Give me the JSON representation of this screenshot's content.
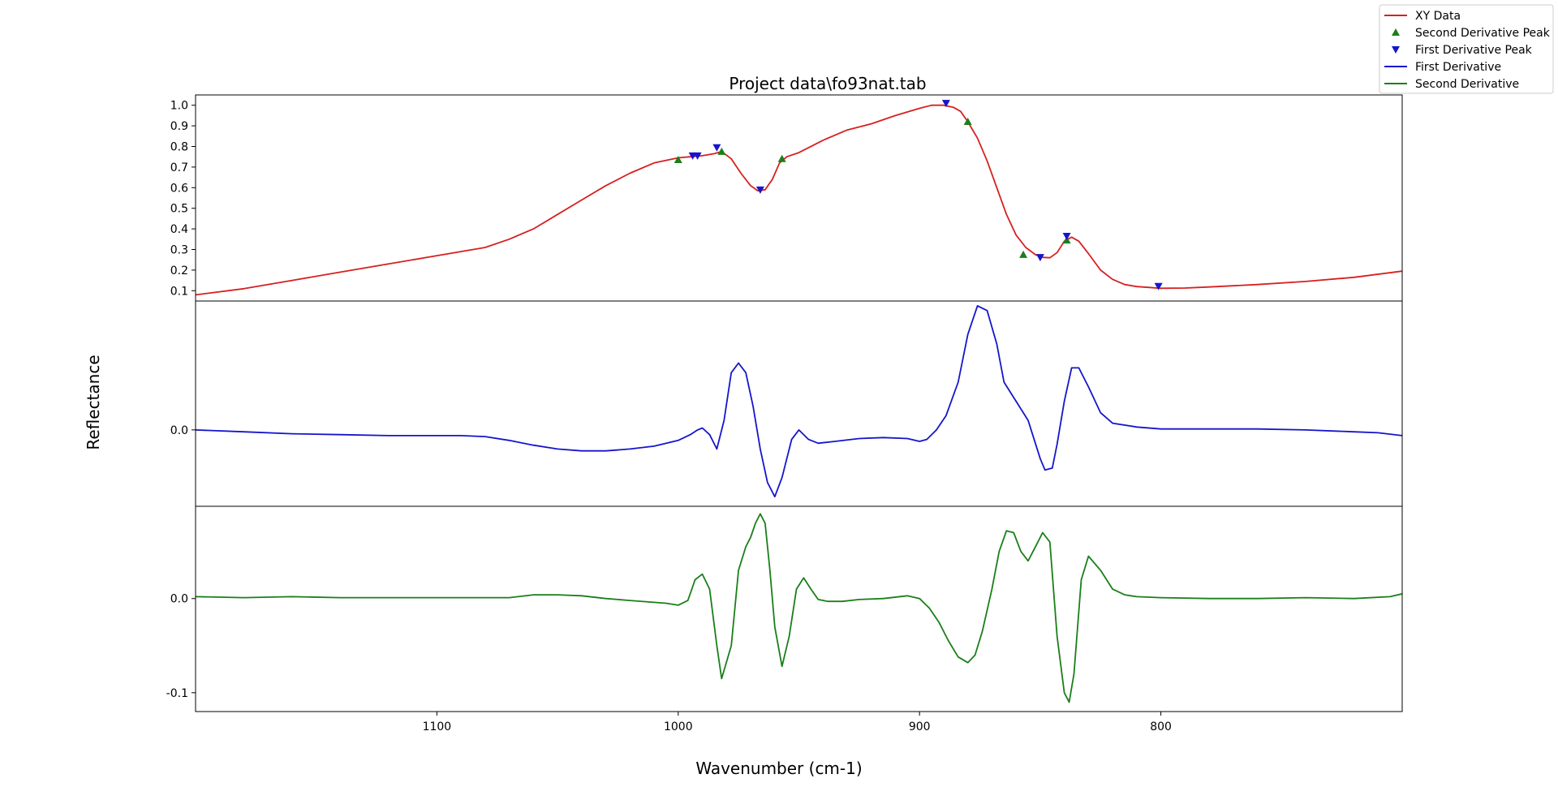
{
  "chart_data": {
    "type": "line",
    "title": "Project data\\fo93nat.tab",
    "xlabel": "Wavenumber (cm-1)",
    "ylabel": "Reflectance",
    "x_reversed": true,
    "xlim": [
      1200,
      700
    ],
    "xticks": [
      1100,
      1000,
      900,
      800
    ],
    "grid": false,
    "legend_position": "top-right",
    "legend": [
      {
        "label": "XY Data",
        "kind": "line",
        "color": "#d62020"
      },
      {
        "label": "Second Derivative Peak",
        "kind": "triangle-up",
        "color": "#1a7f1a"
      },
      {
        "label": "First Derivative Peak",
        "kind": "triangle-down",
        "color": "#1515cc"
      },
      {
        "label": "First Derivative",
        "kind": "line",
        "color": "#1515cc"
      },
      {
        "label": "Second Derivative",
        "kind": "line",
        "color": "#1a7f1a"
      }
    ],
    "panels": [
      {
        "id": "xy",
        "ylim": [
          0.05,
          1.05
        ],
        "yticks": [
          0.1,
          0.2,
          0.3,
          0.4,
          0.5,
          0.6,
          0.7,
          0.8,
          0.9,
          1.0
        ],
        "ytick_labels": [
          "0.1",
          "0.2",
          "0.3",
          "0.4",
          "0.5",
          "0.6",
          "0.7",
          "0.8",
          "0.9",
          "1.0"
        ],
        "series": [
          {
            "name": "XY Data",
            "color": "#d62020",
            "x": [
              1200,
              1180,
              1160,
              1140,
              1120,
              1100,
              1080,
              1070,
              1060,
              1050,
              1040,
              1030,
              1020,
              1010,
              1000,
              995,
              990,
              985,
              982,
              978,
              974,
              970,
              967,
              964,
              961,
              958,
              955,
              950,
              940,
              930,
              920,
              910,
              900,
              895,
              890,
              886,
              883,
              880,
              876,
              872,
              868,
              864,
              860,
              856,
              852,
              849,
              846,
              843,
              840,
              837,
              834,
              830,
              825,
              820,
              815,
              810,
              800,
              790,
              780,
              760,
              740,
              720,
              700
            ],
            "y": [
              0.08,
              0.11,
              0.15,
              0.19,
              0.23,
              0.27,
              0.31,
              0.35,
              0.4,
              0.47,
              0.54,
              0.61,
              0.67,
              0.72,
              0.745,
              0.75,
              0.755,
              0.765,
              0.775,
              0.74,
              0.67,
              0.61,
              0.585,
              0.59,
              0.64,
              0.72,
              0.75,
              0.77,
              0.83,
              0.88,
              0.91,
              0.95,
              0.985,
              1.0,
              1.0,
              0.99,
              0.97,
              0.92,
              0.84,
              0.73,
              0.6,
              0.47,
              0.37,
              0.31,
              0.275,
              0.262,
              0.26,
              0.285,
              0.34,
              0.36,
              0.34,
              0.28,
              0.2,
              0.155,
              0.13,
              0.12,
              0.112,
              0.113,
              0.118,
              0.13,
              0.145,
              0.165,
              0.195
            ]
          }
        ],
        "markers": [
          {
            "name": "Second Derivative Peak",
            "shape": "triangle-up",
            "color": "#1a7f1a",
            "x": [
              1000,
              982,
              957,
              880,
              857,
              839
            ],
            "y": [
              0.735,
              0.775,
              0.74,
              0.92,
              0.275,
              0.345
            ]
          },
          {
            "name": "First Derivative Peak",
            "shape": "triangle-down",
            "color": "#1515cc",
            "x": [
              994,
              992,
              984,
              966,
              889,
              850,
              839,
              801
            ],
            "y": [
              0.755,
              0.755,
              0.795,
              0.59,
              1.01,
              0.262,
              0.365,
              0.122
            ]
          }
        ]
      },
      {
        "id": "first_derivative",
        "ylim": [
          -0.08,
          0.135
        ],
        "yticks": [
          0.0
        ],
        "ytick_labels": [
          "0.0"
        ],
        "series": [
          {
            "name": "First Derivative",
            "color": "#1515cc",
            "x": [
              1200,
              1180,
              1160,
              1140,
              1120,
              1100,
              1090,
              1080,
              1070,
              1060,
              1050,
              1040,
              1030,
              1020,
              1010,
              1000,
              995,
              992,
              990,
              987,
              984,
              981,
              978,
              975,
              972,
              969,
              966,
              963,
              960,
              957,
              953,
              950,
              946,
              942,
              935,
              925,
              915,
              905,
              900,
              897,
              893,
              889,
              884,
              880,
              876,
              872,
              868,
              865,
              860,
              855,
              850,
              848,
              845,
              843,
              840,
              837,
              834,
              830,
              825,
              820,
              810,
              800,
              780,
              760,
              740,
              720,
              710,
              700
            ],
            "y": [
              0.0,
              -0.002,
              -0.004,
              -0.005,
              -0.006,
              -0.006,
              -0.006,
              -0.007,
              -0.011,
              -0.016,
              -0.02,
              -0.022,
              -0.022,
              -0.02,
              -0.017,
              -0.011,
              -0.005,
              0.0,
              0.002,
              -0.005,
              -0.02,
              0.01,
              0.06,
              0.07,
              0.06,
              0.025,
              -0.02,
              -0.055,
              -0.07,
              -0.05,
              -0.01,
              0.0,
              -0.01,
              -0.014,
              -0.012,
              -0.009,
              -0.008,
              -0.009,
              -0.012,
              -0.01,
              0.0,
              0.015,
              0.05,
              0.1,
              0.13,
              0.125,
              0.09,
              0.05,
              0.03,
              0.01,
              -0.03,
              -0.042,
              -0.04,
              -0.015,
              0.03,
              0.065,
              0.065,
              0.045,
              0.018,
              0.007,
              0.003,
              0.001,
              0.001,
              0.001,
              0.0,
              -0.002,
              -0.003,
              -0.006
            ]
          }
        ],
        "markers": []
      },
      {
        "id": "second_derivative",
        "ylim": [
          -0.12,
          0.098
        ],
        "yticks": [
          0.0,
          -0.1
        ],
        "ytick_labels": [
          "0.0",
          "-0.1"
        ],
        "series": [
          {
            "name": "Second Derivative",
            "color": "#1a7f1a",
            "x": [
              1200,
              1180,
              1160,
              1140,
              1120,
              1100,
              1090,
              1080,
              1070,
              1060,
              1050,
              1040,
              1030,
              1020,
              1010,
              1005,
              1000,
              996,
              993,
              990,
              987,
              984,
              982,
              978,
              975,
              972,
              970,
              968,
              966,
              964,
              962,
              960,
              957,
              954,
              951,
              948,
              945,
              942,
              938,
              932,
              925,
              915,
              905,
              900,
              896,
              892,
              888,
              884,
              880,
              877,
              874,
              870,
              867,
              864,
              861,
              858,
              855,
              852,
              849,
              846,
              843,
              840,
              838,
              836,
              833,
              830,
              825,
              820,
              815,
              810,
              800,
              780,
              760,
              740,
              720,
              705,
              700
            ],
            "y": [
              0.002,
              0.001,
              0.002,
              0.001,
              0.001,
              0.001,
              0.001,
              0.001,
              0.001,
              0.004,
              0.004,
              0.003,
              0.0,
              -0.002,
              -0.004,
              -0.005,
              -0.007,
              -0.002,
              0.02,
              0.026,
              0.01,
              -0.05,
              -0.085,
              -0.05,
              0.03,
              0.055,
              0.065,
              0.08,
              0.09,
              0.08,
              0.03,
              -0.03,
              -0.072,
              -0.04,
              0.01,
              0.022,
              0.01,
              -0.001,
              -0.003,
              -0.003,
              -0.001,
              0.0,
              0.003,
              0.0,
              -0.01,
              -0.025,
              -0.045,
              -0.062,
              -0.068,
              -0.06,
              -0.035,
              0.01,
              0.05,
              0.072,
              0.07,
              0.05,
              0.04,
              0.055,
              0.07,
              0.06,
              -0.04,
              -0.1,
              -0.11,
              -0.08,
              0.02,
              0.045,
              0.03,
              0.01,
              0.004,
              0.002,
              0.001,
              0.0,
              0.0,
              0.001,
              0.0,
              0.002,
              0.005
            ]
          }
        ],
        "markers": []
      }
    ]
  }
}
